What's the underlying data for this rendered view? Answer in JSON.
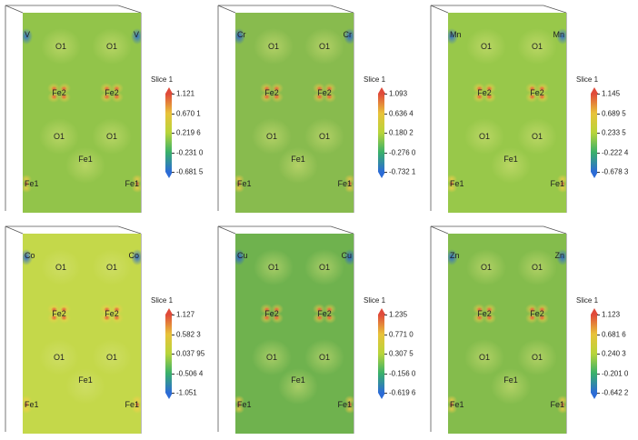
{
  "colorbar_gradient": [
    "#2c6bd6",
    "#39b06a",
    "#b8d43a",
    "#e8c23a",
    "#e04a3a"
  ],
  "panels": [
    {
      "bg": "#92c44a",
      "blob_warm": "#e7c84a",
      "blob_hot": "#e65a3a",
      "blob_cold": "#2f6fd0",
      "colorbar": {
        "title": "Slice 1",
        "ticks": [
          "1.121",
          "0.670 1",
          "0.219 6",
          "-0.231 0",
          "-0.681 5"
        ]
      },
      "atoms": [
        {
          "label": "V",
          "pos": "tl"
        },
        {
          "label": "V",
          "pos": "tr"
        },
        {
          "label": "O1",
          "pos": "o1a"
        },
        {
          "label": "O1",
          "pos": "o1b"
        },
        {
          "label": "Fe2",
          "pos": "fe2a"
        },
        {
          "label": "Fe2",
          "pos": "fe2b"
        },
        {
          "label": "O1",
          "pos": "o1c"
        },
        {
          "label": "O1",
          "pos": "o1d"
        },
        {
          "label": "Fe1",
          "pos": "fe1m"
        },
        {
          "label": "Fe1",
          "pos": "bl"
        },
        {
          "label": "Fe1",
          "pos": "br"
        }
      ]
    },
    {
      "bg": "#88bb4e",
      "blob_warm": "#e6c44a",
      "blob_hot": "#e65a3a",
      "blob_cold": "#2b63cf",
      "colorbar": {
        "title": "Slice 1",
        "ticks": [
          "1.093",
          "0.636 4",
          "0.180 2",
          "-0.276 0",
          "-0.732 1"
        ]
      },
      "atoms": [
        {
          "label": "Cr",
          "pos": "tl"
        },
        {
          "label": "Cr",
          "pos": "tr"
        },
        {
          "label": "O1",
          "pos": "o1a"
        },
        {
          "label": "O1",
          "pos": "o1b"
        },
        {
          "label": "Fe2",
          "pos": "fe2a"
        },
        {
          "label": "Fe2",
          "pos": "fe2b"
        },
        {
          "label": "O1",
          "pos": "o1c"
        },
        {
          "label": "O1",
          "pos": "o1d"
        },
        {
          "label": "Fe1",
          "pos": "fe1m"
        },
        {
          "label": "Fe1",
          "pos": "bl"
        },
        {
          "label": "Fe1",
          "pos": "br"
        }
      ]
    },
    {
      "bg": "#98c84a",
      "blob_warm": "#e9cc4a",
      "blob_hot": "#e65a3a",
      "blob_cold": "#3470d0",
      "colorbar": {
        "title": "Slice 1",
        "ticks": [
          "1.145",
          "0.689 5",
          "0.233 5",
          "-0.222 4",
          "-0.678 3"
        ]
      },
      "atoms": [
        {
          "label": "Mn",
          "pos": "tl"
        },
        {
          "label": "Mn",
          "pos": "tr"
        },
        {
          "label": "O1",
          "pos": "o1a"
        },
        {
          "label": "O1",
          "pos": "o1b"
        },
        {
          "label": "Fe2",
          "pos": "fe2a"
        },
        {
          "label": "Fe2",
          "pos": "fe2b"
        },
        {
          "label": "O1",
          "pos": "o1c"
        },
        {
          "label": "O1",
          "pos": "o1d"
        },
        {
          "label": "Fe1",
          "pos": "fe1m"
        },
        {
          "label": "Fe1",
          "pos": "bl"
        },
        {
          "label": "Fe1",
          "pos": "br"
        }
      ]
    },
    {
      "bg": "#c4d84a",
      "blob_warm": "#ecd04a",
      "blob_hot": "#e4563a",
      "blob_cold": "#2c66d2",
      "colorbar": {
        "title": "Slice 1",
        "ticks": [
          "1.127",
          "0.582 3",
          "0.037 95",
          "-0.506 4",
          "-1.051"
        ]
      },
      "atoms": [
        {
          "label": "Co",
          "pos": "tl"
        },
        {
          "label": "Co",
          "pos": "tr"
        },
        {
          "label": "O1",
          "pos": "o1a"
        },
        {
          "label": "O1",
          "pos": "o1b"
        },
        {
          "label": "Fe2",
          "pos": "fe2a"
        },
        {
          "label": "Fe2",
          "pos": "fe2b"
        },
        {
          "label": "O1",
          "pos": "o1c"
        },
        {
          "label": "O1",
          "pos": "o1d"
        },
        {
          "label": "Fe1",
          "pos": "fe1m"
        },
        {
          "label": "Fe1",
          "pos": "bl"
        },
        {
          "label": "Fe1",
          "pos": "br"
        }
      ]
    },
    {
      "bg": "#6fb24e",
      "blob_warm": "#e2c44a",
      "blob_hot": "#e65a3a",
      "blob_cold": "#2b63cf",
      "colorbar": {
        "title": "Slice 1",
        "ticks": [
          "1.235",
          "0.771 0",
          "0.307 5",
          "-0.156 0",
          "-0.619 6"
        ]
      },
      "atoms": [
        {
          "label": "Cu",
          "pos": "tl"
        },
        {
          "label": "Cu",
          "pos": "tr"
        },
        {
          "label": "O1",
          "pos": "o1a"
        },
        {
          "label": "O1",
          "pos": "o1b"
        },
        {
          "label": "Fe2",
          "pos": "fe2a"
        },
        {
          "label": "Fe2",
          "pos": "fe2b"
        },
        {
          "label": "O1",
          "pos": "o1c"
        },
        {
          "label": "O1",
          "pos": "o1d"
        },
        {
          "label": "Fe1",
          "pos": "fe1m"
        },
        {
          "label": "Fe1",
          "pos": "bl"
        },
        {
          "label": "Fe1",
          "pos": "br"
        }
      ]
    },
    {
      "bg": "#84bc4c",
      "blob_warm": "#e6c84a",
      "blob_hot": "#e65a3a",
      "blob_cold": "#2f6cd0",
      "colorbar": {
        "title": "Slice 1",
        "ticks": [
          "1.123",
          "0.681 6",
          "0.240 3",
          "-0.201 0",
          "-0.642 2"
        ]
      },
      "atoms": [
        {
          "label": "Zn",
          "pos": "tl"
        },
        {
          "label": "Zn",
          "pos": "tr"
        },
        {
          "label": "O1",
          "pos": "o1a"
        },
        {
          "label": "O1",
          "pos": "o1b"
        },
        {
          "label": "Fe2",
          "pos": "fe2a"
        },
        {
          "label": "Fe2",
          "pos": "fe2b"
        },
        {
          "label": "O1",
          "pos": "o1c"
        },
        {
          "label": "O1",
          "pos": "o1d"
        },
        {
          "label": "Fe1",
          "pos": "fe1m"
        },
        {
          "label": "Fe1",
          "pos": "bl"
        },
        {
          "label": "Fe1",
          "pos": "br"
        }
      ]
    }
  ]
}
